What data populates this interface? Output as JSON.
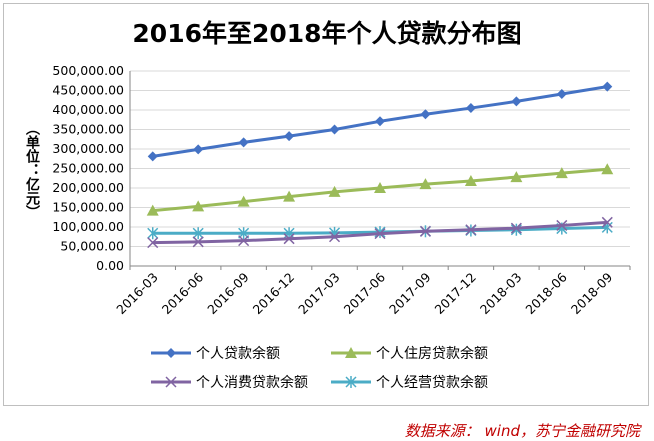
{
  "chart_data": {
    "type": "line",
    "title": "2016年至2018年个人贷款分布图",
    "ylabel": "（单位：亿元）",
    "xlabel": "",
    "categories": [
      "2016-03",
      "2016-06",
      "2016-09",
      "2016-12",
      "2017-03",
      "2017-06",
      "2017-09",
      "2017-12",
      "2018-03",
      "2018-06",
      "2018-09"
    ],
    "ylim": [
      0,
      500000
    ],
    "yticks": [
      "0.00",
      "50,000.00",
      "100,000.00",
      "150,000.00",
      "200,000.00",
      "250,000.00",
      "300,000.00",
      "350,000.00",
      "400,000.00",
      "450,000.00",
      "500,000.00"
    ],
    "grid": true,
    "legend_position": "bottom",
    "series": [
      {
        "name": "个人贷款余额",
        "color": "#4472c4",
        "marker": "diamond",
        "values": [
          281000,
          299000,
          317000,
          333000,
          350000,
          371000,
          389000,
          405000,
          422000,
          441000,
          460000
        ]
      },
      {
        "name": "个人住房贷款余额",
        "color": "#9bbb59",
        "marker": "triangle",
        "values": [
          142000,
          153000,
          165000,
          178000,
          190000,
          200000,
          210000,
          218000,
          228000,
          238000,
          248000
        ]
      },
      {
        "name": "个人消费贷款余额",
        "color": "#8064a2",
        "marker": "x",
        "values": [
          60000,
          62000,
          65000,
          70000,
          75000,
          83000,
          89000,
          93000,
          97000,
          104000,
          112000
        ]
      },
      {
        "name": "个人经营贷款余额",
        "color": "#4bacc6",
        "marker": "star",
        "values": [
          84000,
          84000,
          84000,
          84000,
          85000,
          87000,
          89000,
          91000,
          93000,
          96000,
          99000
        ]
      }
    ]
  },
  "footer": {
    "source": "数据来源：  wind，苏宁金融研究院"
  }
}
